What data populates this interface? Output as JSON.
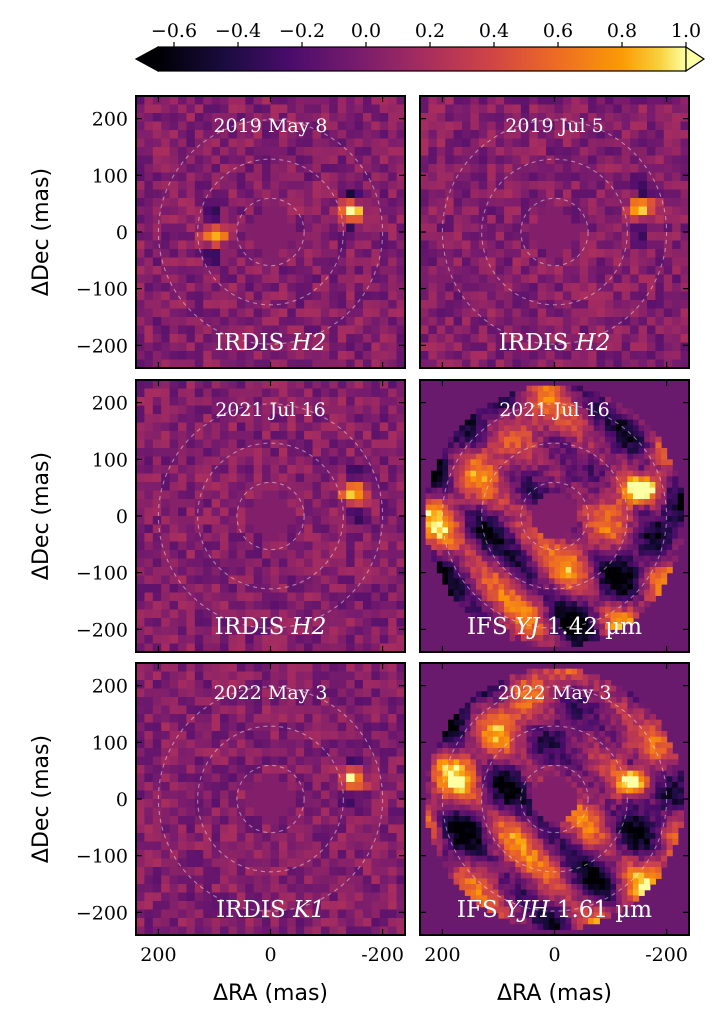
{
  "chart_data": {
    "type": "heatmap",
    "colorbar": {
      "ticks": [
        "−0.6",
        "−0.4",
        "−0.2",
        "0.0",
        "0.2",
        "0.4",
        "0.6",
        "0.8",
        "1.0"
      ],
      "range": [
        -0.65,
        1.0
      ],
      "colormap": "inferno",
      "extend": "both",
      "position": "top"
    },
    "xlabel": "ΔRA (mas)",
    "ylabel": "ΔDec (mas)",
    "xticks": [
      "200",
      "0",
      "-200"
    ],
    "yticks": [
      "200",
      "100",
      "0",
      "−100",
      "−200"
    ],
    "xlim": [
      240,
      -240
    ],
    "ylim": [
      -240,
      240
    ],
    "ring_radii_mas": [
      60,
      130,
      200
    ],
    "panels": [
      {
        "date": "2019 May 8",
        "instrument": "IRDIS ",
        "filter": "H2",
        "suffix": "",
        "sources": [
          {
            "ra": -145,
            "dec": 35,
            "amp": 1.0
          },
          {
            "ra": 100,
            "dec": -5,
            "amp": 0.85
          }
        ]
      },
      {
        "date": "2019 Jul 5",
        "instrument": "IRDIS ",
        "filter": "H2",
        "suffix": "",
        "sources": [
          {
            "ra": -155,
            "dec": 40,
            "amp": 1.0
          }
        ]
      },
      {
        "date": "2021 Jul 16",
        "instrument": "IRDIS ",
        "filter": "H2",
        "suffix": "",
        "sources": [
          {
            "ra": -150,
            "dec": 40,
            "amp": 1.0
          }
        ]
      },
      {
        "date": "2021 Jul 16",
        "instrument": "IFS ",
        "filter": "YJ",
        "suffix": " 1.42 µm",
        "sources": [
          {
            "ra": -155,
            "dec": 45,
            "amp": 0.9
          }
        ]
      },
      {
        "date": "2022 May 3",
        "instrument": "IRDIS ",
        "filter": "K1",
        "suffix": "",
        "sources": [
          {
            "ra": -145,
            "dec": 35,
            "amp": 1.0
          }
        ]
      },
      {
        "date": "2022 May 3",
        "instrument": "IFS ",
        "filter": "YJH",
        "suffix": " 1.61 µm",
        "sources": [
          {
            "ra": -140,
            "dec": 30,
            "amp": 0.9
          }
        ]
      }
    ]
  }
}
